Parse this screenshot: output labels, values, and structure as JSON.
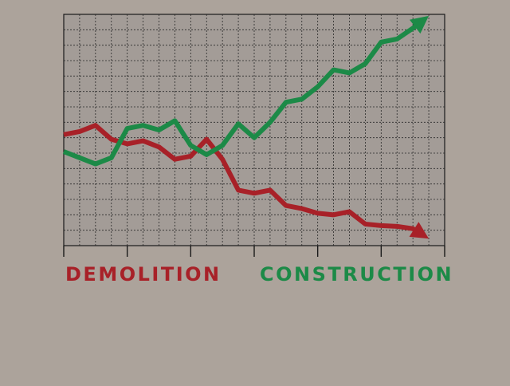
{
  "chart_data": {
    "type": "line",
    "x": [
      0,
      1,
      2,
      3,
      4,
      5,
      6,
      7,
      8,
      9,
      10,
      11,
      12,
      13,
      14,
      15,
      16,
      17,
      18,
      19,
      20,
      21,
      22,
      23
    ],
    "xlim": [
      0,
      24
    ],
    "ylim": [
      0,
      15
    ],
    "grid": true,
    "series": [
      {
        "name": "DEMOLITION",
        "color": "#a82128",
        "marker": "arrow",
        "values": [
          7.2,
          7.4,
          7.8,
          6.9,
          6.6,
          6.8,
          6.4,
          5.6,
          5.8,
          6.9,
          5.6,
          3.6,
          3.4,
          3.6,
          2.6,
          2.4,
          2.1,
          2.0,
          2.2,
          1.4,
          1.3,
          1.25,
          1.1,
          0.45
        ]
      },
      {
        "name": "CONSTRUCTION",
        "color": "#1c8a47",
        "marker": "arrow",
        "values": [
          6.1,
          5.7,
          5.3,
          5.7,
          7.6,
          7.8,
          7.5,
          8.1,
          6.5,
          5.9,
          6.5,
          7.9,
          7.0,
          8.0,
          9.3,
          9.5,
          10.3,
          11.4,
          11.2,
          11.8,
          13.2,
          13.4,
          14.1,
          14.9
        ]
      }
    ],
    "x_ticks": 7
  },
  "legend": {
    "demolition": "DEMOLITION",
    "construction": "CONSTRUCTION"
  }
}
